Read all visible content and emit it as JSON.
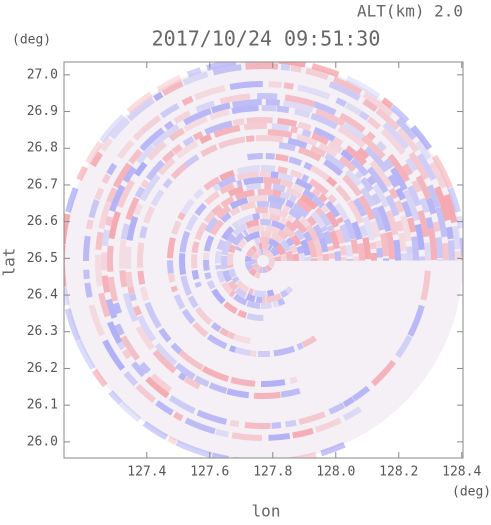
{
  "chart_data": {
    "type": "radar-field",
    "title": "2017/10/24 09:51:30",
    "subtitle": "ALT(km) 2.0",
    "x_label": "lon",
    "y_label": "lat",
    "x_unit": "(deg)",
    "y_unit": "(deg)",
    "xlim": [
      127.137,
      128.404
    ],
    "ylim": [
      25.956,
      27.035
    ],
    "xticks": [
      127.4,
      127.6,
      127.8,
      {
        "value": 128.0,
        "label": "128.0"
      },
      128.2,
      128.4
    ],
    "yticks": [
      {
        "value": 26.0,
        "label": "26.0"
      },
      26.1,
      26.2,
      26.3,
      26.4,
      26.5,
      26.6,
      26.7,
      26.8,
      26.9,
      {
        "value": 27.0,
        "label": "27.0"
      }
    ]
  }
}
